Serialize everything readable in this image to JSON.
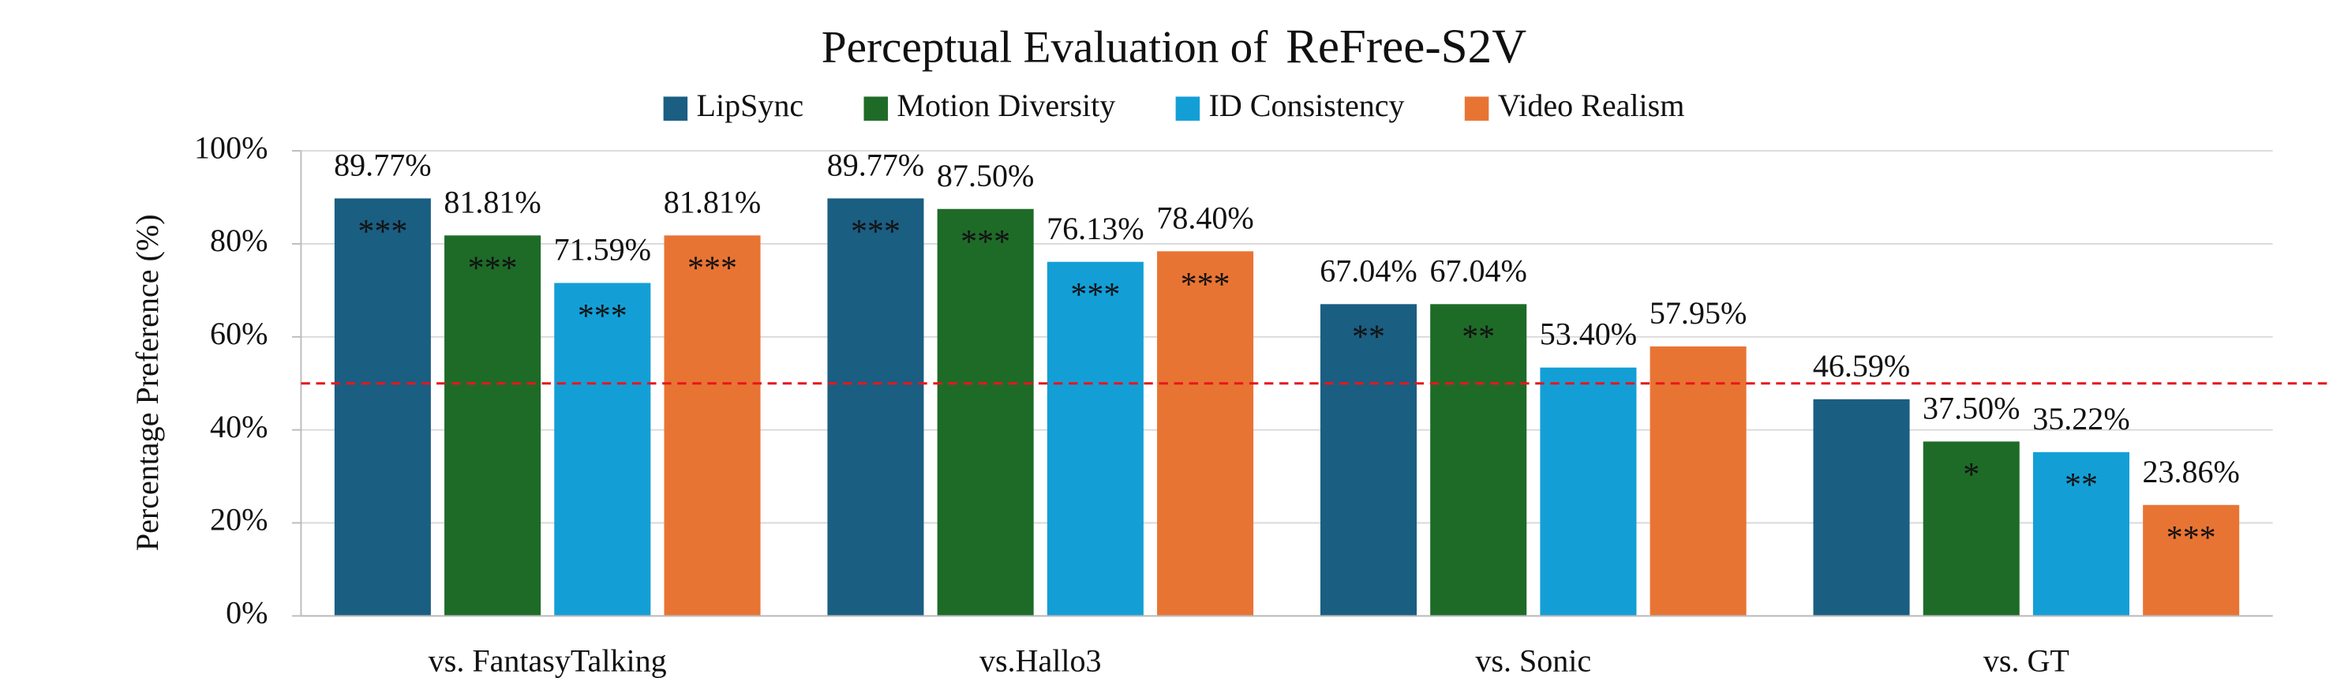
{
  "chart_data": {
    "type": "bar",
    "title": "Perceptual Evaluation of",
    "title_model": "ReFree-S2V",
    "y_label": "Percentage Preference (%)",
    "categories": [
      "vs. FantasyTalking",
      "vs.Hallo3",
      "vs. Sonic",
      "vs. GT"
    ],
    "series": [
      {
        "name": "LipSync",
        "color": "#1a5e82",
        "values": [
          89.77,
          89.77,
          67.04,
          46.59
        ],
        "value_labels": [
          "89.77%",
          "89.77%",
          "67.04%",
          "46.59%"
        ],
        "stars": [
          "***",
          "***",
          "**",
          null
        ]
      },
      {
        "name": "Motion Diversity",
        "color": "#1e6b28",
        "values": [
          81.81,
          87.5,
          67.04,
          37.5
        ],
        "value_labels": [
          "81.81%",
          "87.50%",
          "67.04%",
          "37.50%"
        ],
        "stars": [
          "***",
          "***",
          "**",
          "*"
        ]
      },
      {
        "name": "ID Consistency",
        "color": "#139fd6",
        "values": [
          71.59,
          76.13,
          53.4,
          35.22
        ],
        "value_labels": [
          "71.59%",
          "76.13%",
          "53.40%",
          "35.22%"
        ],
        "stars": [
          "***",
          "***",
          null,
          "**"
        ]
      },
      {
        "name": "Video Realism",
        "color": "#e87434",
        "values": [
          81.81,
          78.4,
          57.95,
          23.86
        ],
        "value_labels": [
          "81.81%",
          "78.40%",
          "57.95%",
          "23.86%"
        ],
        "stars": [
          "***",
          "***",
          null,
          "***"
        ]
      }
    ],
    "ylim": [
      0,
      100
    ],
    "yticks": [
      {
        "value": 0,
        "label": "0%"
      },
      {
        "value": 20,
        "label": "20%"
      },
      {
        "value": 40,
        "label": "40%"
      },
      {
        "value": 60,
        "label": "60%"
      },
      {
        "value": 80,
        "label": "80%"
      },
      {
        "value": 100,
        "label": "100%"
      }
    ],
    "grid": true,
    "reference_line": {
      "value": 50,
      "color": "#e8161b"
    }
  }
}
